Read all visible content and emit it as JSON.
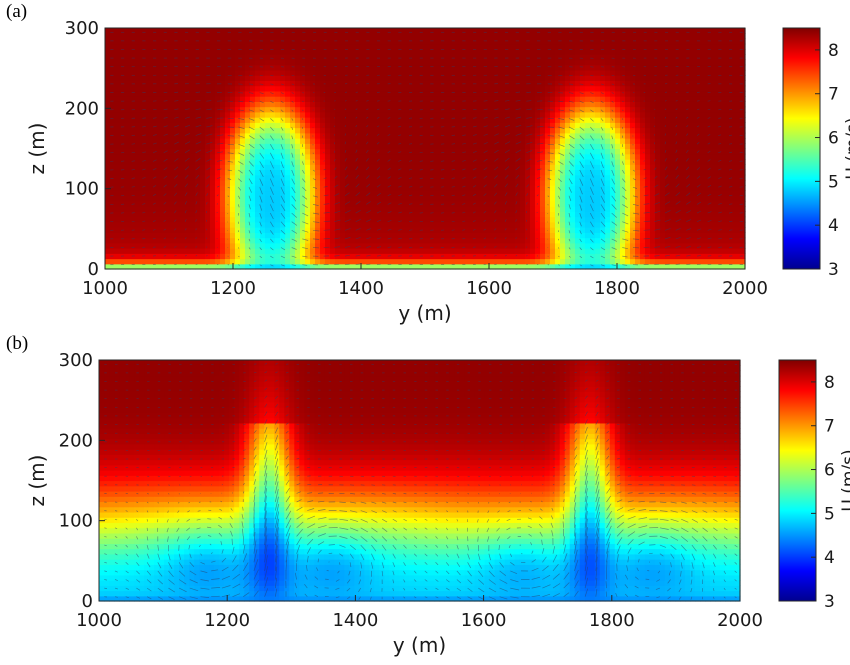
{
  "chart_data": [
    {
      "panel": "(a)",
      "type": "heatmap",
      "xlabel": "y (m)",
      "ylabel": "z (m)",
      "xlim": [
        1000,
        2000
      ],
      "ylim": [
        0,
        300
      ],
      "xticks": [
        "1000",
        "1200",
        "1400",
        "1600",
        "1800",
        "2000"
      ],
      "yticks": [
        "0",
        "100",
        "200",
        "300"
      ],
      "colorbar": {
        "label": "U (m/s)",
        "range": [
          3,
          8.5
        ],
        "ticks": [
          "3",
          "4",
          "5",
          "6",
          "7",
          "8"
        ]
      },
      "overlay": "velocity vectors (v, w)",
      "wakes": [
        {
          "y_center": 1260,
          "z_center": 95,
          "u_min": 5.0,
          "top_height": 235
        },
        {
          "y_center": 1760,
          "z_center": 95,
          "u_min": 5.0,
          "top_height": 235
        }
      ],
      "freestream_u": 8.4
    },
    {
      "panel": "(b)",
      "type": "heatmap",
      "xlabel": "y (m)",
      "ylabel": "z (m)",
      "xlim": [
        1000,
        2000
      ],
      "ylim": [
        0,
        300
      ],
      "xticks": [
        "1000",
        "1200",
        "1400",
        "1600",
        "1800",
        "2000"
      ],
      "yticks": [
        "0",
        "100",
        "200",
        "300"
      ],
      "colorbar": {
        "label": "U (m/s)",
        "range": [
          3,
          8.5
        ],
        "ticks": [
          "3",
          "4",
          "5",
          "6",
          "7",
          "8"
        ]
      },
      "overlay": "velocity vectors (v, w)",
      "low_speed_cells": [
        {
          "y_center": 1170,
          "z_center": 55,
          "u_min": 5.0
        },
        {
          "y_center": 1360,
          "z_center": 55,
          "u_min": 5.0
        },
        {
          "y_center": 1660,
          "z_center": 55,
          "u_min": 5.0
        },
        {
          "y_center": 1860,
          "z_center": 55,
          "u_min": 5.0
        }
      ],
      "updraft_columns_y": [
        1265,
        1765
      ],
      "freestream_u": 8.4
    }
  ]
}
